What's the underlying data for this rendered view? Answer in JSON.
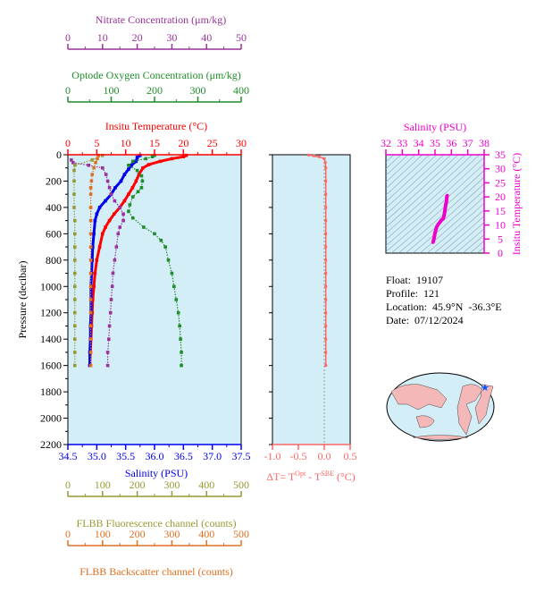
{
  "colors": {
    "nitrate": "#993399",
    "oxygen": "#1f8c2a",
    "temperature": "#ff0000",
    "salinity": "#0000ee",
    "fluorescence": "#999933",
    "backscatter": "#e07020",
    "delta_t": "#ff6666",
    "ts_line": "#ee00cc",
    "plot_bg": "#d4eef8"
  },
  "info": {
    "float_label": "Float:",
    "float_value": "19107",
    "profile_label": "Profile:",
    "profile_value": "121",
    "location_label": "Location:",
    "location_value": "45.9°N  -36.3°E",
    "date_label": "Date:",
    "date_value": "07/12/2024"
  },
  "chart_data": [
    {
      "id": "main-profile",
      "type": "line",
      "ylabel": "Pressure (decibar)",
      "ylim": [
        2200,
        0
      ],
      "yticks": [
        "0",
        "200",
        "400",
        "600",
        "800",
        "1000",
        "1200",
        "1400",
        "1600",
        "1800",
        "2000",
        "2200"
      ],
      "axes": {
        "nitrate": {
          "label": "Nitrate Concentration (μm/kg)",
          "lim": [
            0,
            50
          ],
          "ticks": [
            "0",
            "10",
            "20",
            "30",
            "40",
            "50"
          ]
        },
        "oxygen": {
          "label": "Optode Oxygen Concentration (μm/kg)",
          "lim": [
            0,
            400
          ],
          "ticks": [
            "0",
            "100",
            "200",
            "300",
            "400"
          ]
        },
        "temperature": {
          "label": "Insitu Temperature (°C)",
          "lim": [
            0,
            30
          ],
          "ticks": [
            "0",
            "5",
            "10",
            "15",
            "20",
            "25",
            "30"
          ]
        },
        "salinity": {
          "label": "Salinity (PSU)",
          "lim": [
            34.5,
            37.5
          ],
          "ticks": [
            "34.5",
            "35.0",
            "35.5",
            "36.0",
            "36.5",
            "37.0",
            "37.5"
          ]
        },
        "fluorescence": {
          "label": "FLBB Fluorescence channel (counts)",
          "lim": [
            0,
            500
          ],
          "ticks": [
            "0",
            "100",
            "200",
            "300",
            "400",
            "500"
          ]
        },
        "backscatter": {
          "label": "FLBB Backscatter channel (counts)",
          "lim": [
            0,
            500
          ],
          "ticks": [
            "0",
            "100",
            "200",
            "300",
            "400",
            "500"
          ]
        }
      },
      "series": [
        {
          "axis": "temperature",
          "values": [
            [
              20.5,
              5
            ],
            [
              20,
              15
            ],
            [
              18,
              30
            ],
            [
              16,
              50
            ],
            [
              14,
              75
            ],
            [
              13,
              100
            ],
            [
              12.3,
              150
            ],
            [
              11.8,
              200
            ],
            [
              11.2,
              250
            ],
            [
              10.5,
              300
            ],
            [
              9.8,
              350
            ],
            [
              9,
              400
            ],
            [
              8,
              450
            ],
            [
              7.2,
              500
            ],
            [
              6.5,
              550
            ],
            [
              6,
              600
            ],
            [
              5.5,
              700
            ],
            [
              5,
              800
            ],
            [
              4.7,
              900
            ],
            [
              4.5,
              1000
            ],
            [
              4.3,
              1100
            ],
            [
              4.2,
              1200
            ],
            [
              4.1,
              1300
            ],
            [
              4,
              1400
            ],
            [
              3.9,
              1500
            ],
            [
              3.8,
              1600
            ]
          ]
        },
        {
          "axis": "salinity",
          "values": [
            [
              35.75,
              5
            ],
            [
              35.7,
              20
            ],
            [
              35.68,
              50
            ],
            [
              35.6,
              80
            ],
            [
              35.55,
              110
            ],
            [
              35.48,
              150
            ],
            [
              35.42,
              200
            ],
            [
              35.32,
              250
            ],
            [
              35.25,
              300
            ],
            [
              35.15,
              350
            ],
            [
              35.05,
              400
            ],
            [
              35.0,
              450
            ],
            [
              34.97,
              500
            ],
            [
              34.95,
              600
            ],
            [
              34.93,
              700
            ],
            [
              34.92,
              800
            ],
            [
              34.91,
              900
            ],
            [
              34.9,
              1000
            ],
            [
              34.9,
              1100
            ],
            [
              34.9,
              1200
            ],
            [
              34.89,
              1300
            ],
            [
              34.89,
              1400
            ],
            [
              34.88,
              1500
            ],
            [
              34.88,
              1600
            ]
          ]
        },
        {
          "axis": "nitrate",
          "values": [
            [
              1,
              40
            ],
            [
              1.5,
              60
            ],
            [
              6,
              80
            ],
            [
              10,
              100
            ],
            [
              11,
              150
            ],
            [
              11.5,
              200
            ],
            [
              12,
              250
            ],
            [
              12.5,
              300
            ],
            [
              13.5,
              350
            ],
            [
              15,
              400
            ],
            [
              16,
              450
            ],
            [
              16,
              500
            ],
            [
              15,
              550
            ],
            [
              14.5,
              600
            ],
            [
              14,
              700
            ],
            [
              13.5,
              800
            ],
            [
              13,
              900
            ],
            [
              12.8,
              1000
            ],
            [
              12.5,
              1100
            ],
            [
              12.3,
              1200
            ],
            [
              12,
              1300
            ],
            [
              11.8,
              1400
            ],
            [
              11.5,
              1500
            ],
            [
              11.5,
              1600
            ]
          ]
        },
        {
          "axis": "oxygen",
          "values": [
            [
              200,
              5
            ],
            [
              195,
              15
            ],
            [
              180,
              30
            ],
            [
              150,
              50
            ],
            [
              140,
              80
            ],
            [
              160,
              120
            ],
            [
              170,
              160
            ],
            [
              172,
              200
            ],
            [
              170,
              250
            ],
            [
              162,
              280
            ],
            [
              150,
              320
            ],
            [
              143,
              380
            ],
            [
              140,
              430
            ],
            [
              150,
              480
            ],
            [
              175,
              550
            ],
            [
              200,
              600
            ],
            [
              215,
              650
            ],
            [
              225,
              700
            ],
            [
              232,
              800
            ],
            [
              240,
              900
            ],
            [
              245,
              1000
            ],
            [
              250,
              1100
            ],
            [
              255,
              1200
            ],
            [
              258,
              1300
            ],
            [
              260,
              1400
            ],
            [
              262,
              1500
            ],
            [
              262,
              1600
            ]
          ]
        },
        {
          "axis": "fluorescence",
          "values": [
            [
              100,
              5
            ],
            [
              70,
              40
            ],
            [
              20,
              80
            ],
            [
              18,
              120
            ],
            [
              18,
              200
            ],
            [
              18,
              300
            ],
            [
              18,
              400
            ],
            [
              20,
              500
            ],
            [
              20,
              600
            ],
            [
              20,
              700
            ],
            [
              20,
              800
            ],
            [
              20,
              900
            ],
            [
              20,
              1000
            ],
            [
              20,
              1100
            ],
            [
              20,
              1200
            ],
            [
              20,
              1300
            ],
            [
              20,
              1400
            ],
            [
              20,
              1500
            ],
            [
              20,
              1600
            ]
          ]
        },
        {
          "axis": "backscatter",
          "values": [
            [
              88,
              5
            ],
            [
              85,
              30
            ],
            [
              80,
              60
            ],
            [
              75,
              100
            ],
            [
              70,
              150
            ],
            [
              68,
              200
            ],
            [
              66,
              250
            ],
            [
              66,
              300
            ],
            [
              66,
              400
            ],
            [
              66,
              500
            ],
            [
              66,
              600
            ],
            [
              66,
              700
            ],
            [
              66,
              800
            ],
            [
              66,
              900
            ],
            [
              66,
              1000
            ],
            [
              66,
              1100
            ],
            [
              66,
              1200
            ],
            [
              66,
              1300
            ],
            [
              66,
              1400
            ],
            [
              66,
              1500
            ],
            [
              66,
              1600
            ]
          ]
        }
      ]
    },
    {
      "id": "delta-t",
      "type": "line",
      "xlabel": "ΔT= T",
      "xlabel_sup1": "Opt",
      "xlabel_mid": " - T",
      "xlabel_sup2": "SBE",
      "xlabel_end": " (°C)",
      "xlim": [
        -1.0,
        0.5
      ],
      "ylim": [
        2200,
        0
      ],
      "xticks": [
        "-1.0",
        "-0.5",
        "0.0",
        "0.5"
      ],
      "series": [
        {
          "values": [
            [
              -0.3,
              2
            ],
            [
              -0.2,
              8
            ],
            [
              -0.1,
              15
            ],
            [
              0.0,
              30
            ],
            [
              0.02,
              60
            ],
            [
              0.03,
              100
            ],
            [
              0.03,
              200
            ],
            [
              0.03,
              300
            ],
            [
              0.03,
              400
            ],
            [
              0.03,
              500
            ],
            [
              0.03,
              600
            ],
            [
              0.03,
              700
            ],
            [
              0.03,
              800
            ],
            [
              0.03,
              900
            ],
            [
              0.03,
              1000
            ],
            [
              0.03,
              1100
            ],
            [
              0.03,
              1200
            ],
            [
              0.03,
              1300
            ],
            [
              0.03,
              1400
            ],
            [
              0.03,
              1500
            ],
            [
              0.03,
              1600
            ]
          ]
        }
      ]
    },
    {
      "id": "ts-diagram",
      "type": "scatter",
      "xlabel": "Salinity (PSU)",
      "ylabel": "Insitu Temperature (°C)",
      "xlim": [
        32,
        38
      ],
      "ylim": [
        0,
        35
      ],
      "xticks": [
        "32",
        "33",
        "34",
        "35",
        "36",
        "37",
        "38"
      ],
      "yticks": [
        "0",
        "5",
        "10",
        "15",
        "20",
        "25",
        "30",
        "35"
      ],
      "series": [
        {
          "values": [
            [
              34.88,
              3.8
            ],
            [
              34.9,
              4.3
            ],
            [
              34.92,
              4.8
            ],
            [
              34.95,
              5.5
            ],
            [
              35.0,
              7.2
            ],
            [
              35.1,
              9.3
            ],
            [
              35.2,
              10.3
            ],
            [
              35.3,
              11
            ],
            [
              35.4,
              11.8
            ],
            [
              35.5,
              12.3
            ],
            [
              35.55,
              13.2
            ],
            [
              35.6,
              15
            ],
            [
              35.65,
              17
            ],
            [
              35.7,
              18.5
            ],
            [
              35.72,
              20
            ],
            [
              35.75,
              20.5
            ]
          ]
        }
      ]
    }
  ]
}
